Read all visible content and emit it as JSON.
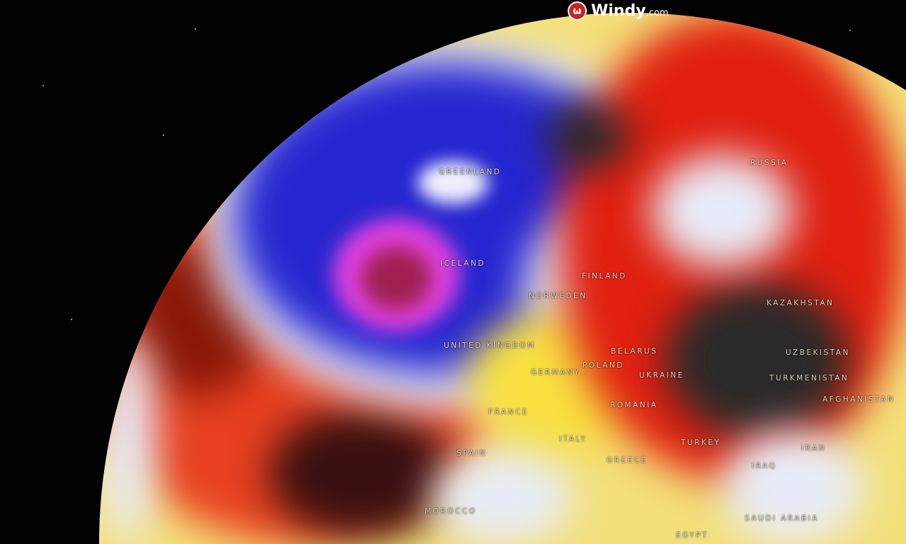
{
  "brand": {
    "name": "Windy",
    "suffix": ".com",
    "icon": "windy-logo-icon"
  },
  "map": {
    "projection": "globe",
    "colors": {
      "space": "#020203",
      "cold": "#2020c8",
      "very_cold": "#e040e0",
      "neutral": "#e8ecf8",
      "warm": "#f8e040",
      "hot": "#e02010",
      "very_hot": "#2a2a2a"
    },
    "labels": [
      "GREENLAND",
      "ICELAND",
      "RUSSIA",
      "FINLAND",
      "NORWEDEN",
      "UNITED KINGDOM",
      "BELARUS",
      "POLAND",
      "GERMANY",
      "UKRAINE",
      "KAZAKHSTAN",
      "UZBEKISTAN",
      "TURKMENISTAN",
      "AFGHANISTAN",
      "FRANCE",
      "ROMANIA",
      "SPAIN",
      "ITALY",
      "GREECE",
      "TURKEY",
      "IRAN",
      "IRAQ",
      "MOROCCO",
      "SAUDI ARABIA",
      "EGYPT"
    ]
  }
}
